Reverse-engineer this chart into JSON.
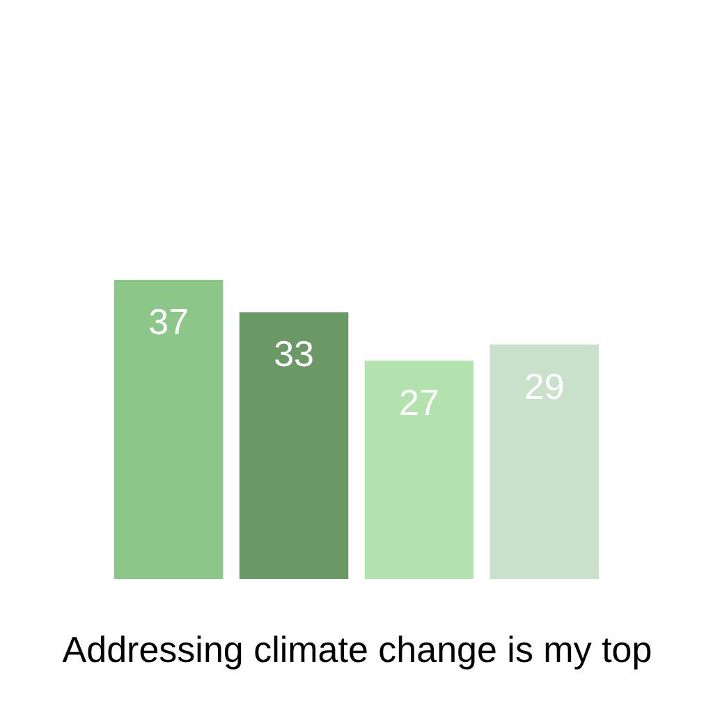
{
  "chart_data": {
    "type": "bar",
    "xlabel": "Addressing climate change is my top",
    "categories": [
      null,
      null,
      null,
      null
    ],
    "values": [
      37,
      33,
      27,
      29
    ],
    "colors": [
      "#8cc688",
      "#6a9966",
      "#b3e2ae",
      "#c9e1ca"
    ],
    "data_labels": true
  }
}
